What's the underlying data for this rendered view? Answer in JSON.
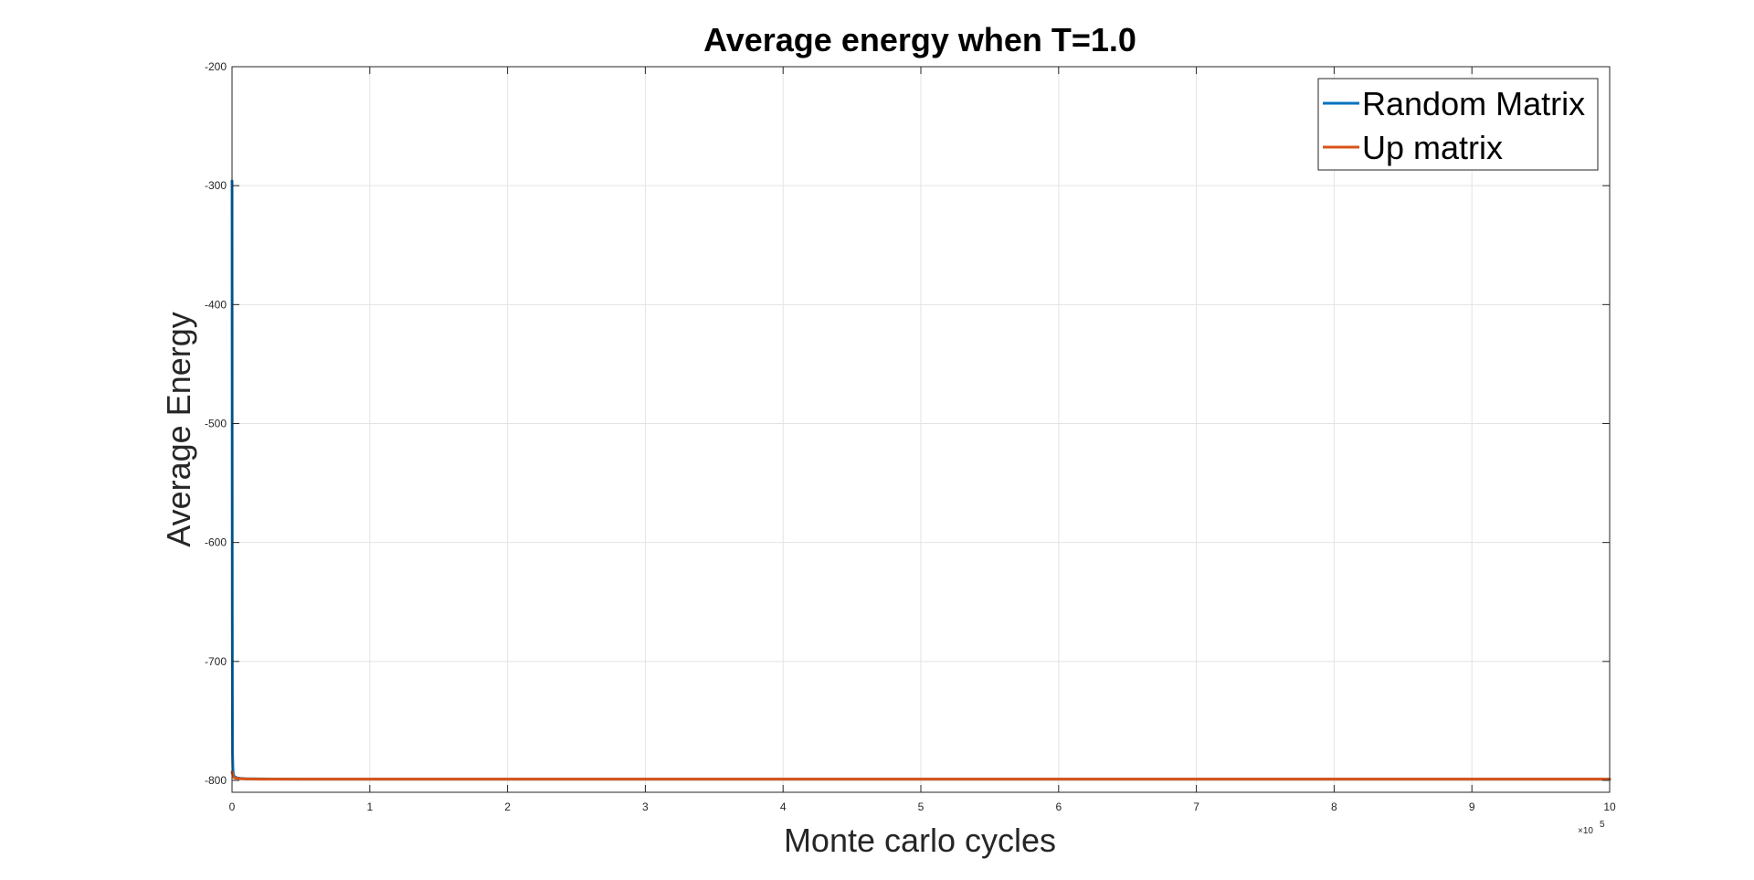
{
  "chart_data": {
    "type": "line",
    "title": "Average energy when T=1.0",
    "xlabel": "Monte carlo cycles",
    "ylabel": "Average Energy",
    "x_exponent_base": "×10",
    "x_exponent_power": "5",
    "xlim": [
      0,
      10
    ],
    "ylim": [
      -810,
      -200
    ],
    "x_ticks": [
      0,
      1,
      2,
      3,
      4,
      5,
      6,
      7,
      8,
      9,
      10
    ],
    "y_ticks": [
      -200,
      -300,
      -400,
      -500,
      -600,
      -700,
      -800
    ],
    "x_tick_labels": [
      "0",
      "1",
      "2",
      "3",
      "4",
      "5",
      "6",
      "7",
      "8",
      "9",
      "10"
    ],
    "y_tick_labels": [
      "-200",
      "-300",
      "-400",
      "-500",
      "-600",
      "-700",
      "-800"
    ],
    "grid": true,
    "legend_position": "top-right",
    "series": [
      {
        "name": "Random Matrix",
        "color": "#0072BD",
        "x": [
          0,
          0.0003,
          0.0006,
          0.001,
          0.0015,
          0.002,
          0.003,
          0.004,
          0.006,
          0.008,
          0.01,
          0.015,
          0.02,
          0.03,
          0.04,
          0.06,
          0.08,
          0.1,
          0.15,
          0.2,
          0.3,
          0.5,
          1,
          2,
          3,
          4,
          5,
          6,
          7,
          8,
          9,
          10
        ],
        "y": [
          -296,
          -300,
          -380,
          -480,
          -580,
          -660,
          -740,
          -778,
          -789,
          -793,
          -795,
          -796.5,
          -797,
          -797.6,
          -798,
          -798.3,
          -798.5,
          -798.6,
          -798.7,
          -798.8,
          -798.9,
          -798.95,
          -799,
          -799,
          -799,
          -799,
          -799,
          -799,
          -799,
          -799,
          -799,
          -799
        ]
      },
      {
        "name": "Up matrix",
        "color": "#D95319",
        "x": [
          0,
          0.005,
          0.01,
          0.02,
          0.05,
          0.1,
          0.2,
          0.5,
          1,
          2,
          3,
          4,
          5,
          6,
          7,
          8,
          9,
          10
        ],
        "y": [
          -793,
          -795,
          -797,
          -798,
          -798.5,
          -798.8,
          -799,
          -799,
          -799,
          -799,
          -799,
          -799,
          -799,
          -799,
          -799,
          -799,
          -799,
          -799
        ]
      }
    ]
  }
}
